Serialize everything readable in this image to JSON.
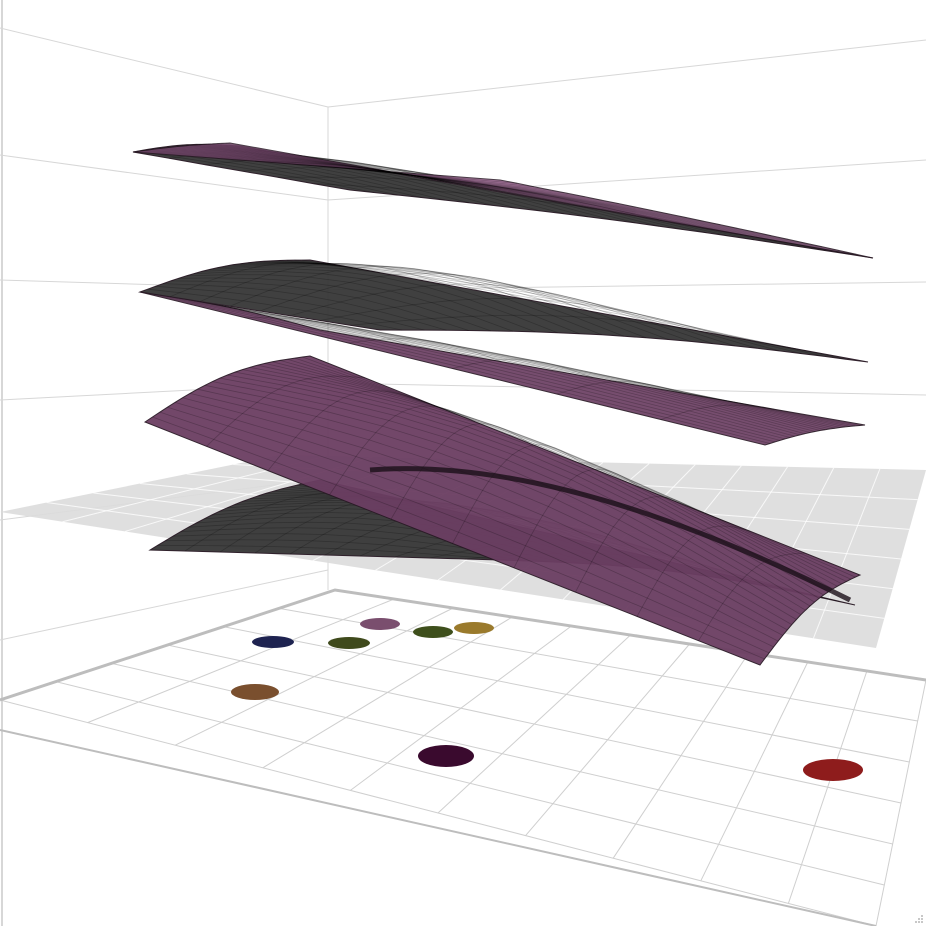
{
  "chart_data": {
    "type": "3d-surface",
    "title": "",
    "axes": {
      "xlabel": "",
      "ylabel": "",
      "zlabel": ""
    },
    "grid": true,
    "legend": "none",
    "colors": {
      "background": "#ffffff",
      "pane_line": "#d7d7d7",
      "floor_line": "#cfcfcf",
      "floor_frame": "#bdbdbd",
      "gray_plane": "#dcdcdc",
      "gray_plane_line": "#ffffff",
      "surface_purple": "#6b3e62",
      "surface_purple_light": "#8a5480",
      "surface_dark": "#3a3a3a",
      "surface_edge": "#2a1a26"
    },
    "surfaces": [
      {
        "id": "top",
        "level": 4,
        "shape": "gentle-arch",
        "color": "dark/purple"
      },
      {
        "id": "upper-middle",
        "level": 3,
        "shape": "gentle-arch",
        "color": "dark/purple"
      },
      {
        "id": "middle",
        "level": 2,
        "shape": "arch",
        "color": "purple"
      },
      {
        "id": "lower",
        "level": 1,
        "shape": "arch",
        "color": "dark"
      },
      {
        "id": "reference-plane",
        "level": 0.5,
        "shape": "flat",
        "color": "gray"
      }
    ],
    "points": [
      {
        "label": "p1",
        "color": "#1e2350"
      },
      {
        "label": "p2",
        "color": "#3f4a1c"
      },
      {
        "label": "p3",
        "color": "#7a4e6e"
      },
      {
        "label": "p4",
        "color": "#3e4f1c"
      },
      {
        "label": "p5",
        "color": "#9a7a2c"
      },
      {
        "label": "p6",
        "color": "#7a4f2e"
      },
      {
        "label": "p7",
        "color": "#3a0a2e"
      },
      {
        "label": "p8",
        "color": "#8e1c1c"
      }
    ]
  }
}
